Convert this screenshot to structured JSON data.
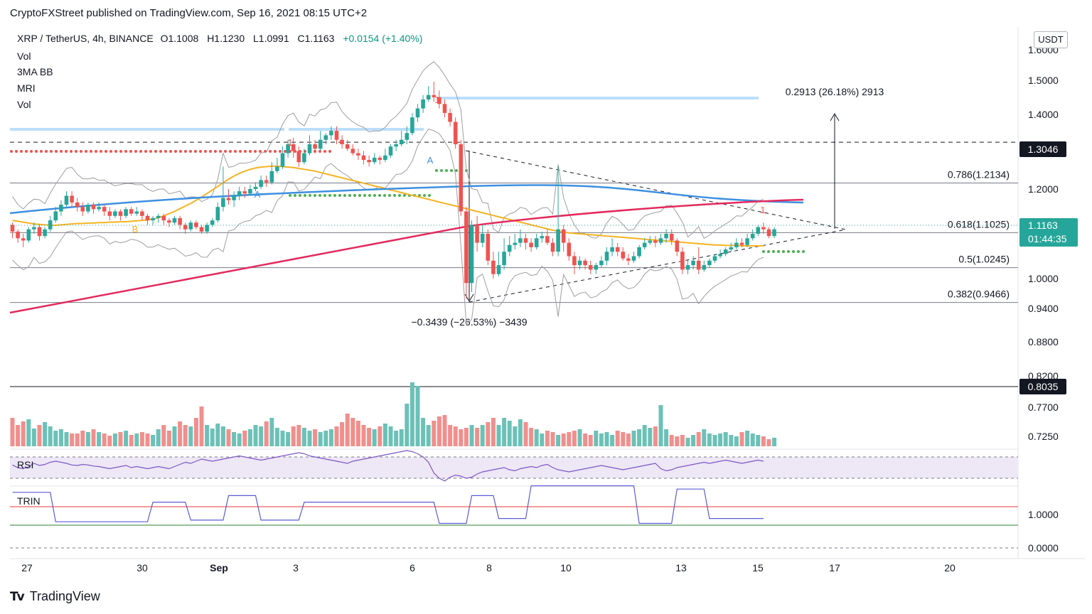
{
  "publisher": "CryptoFXStreet published on TradingView.com, Sep 16, 2021 08:15 UTC+2",
  "legend": {
    "symbol": "XRP / TetherUS, 4h, BINANCE",
    "o": "O1.1008",
    "h": "H1.1230",
    "l": "L1.0991",
    "c": "C1.1163",
    "change": "+0.0154 (+1.40%)",
    "indicators": [
      "Vol",
      "3MA BB",
      "MRI",
      "Vol"
    ]
  },
  "currency_button": "USDT",
  "footer_brand": "TradingView",
  "colors": {
    "up": "#26a69a",
    "down": "#ef5350",
    "ma_yellow": "#f5b323",
    "ma_blue": "#3d8fe0",
    "ma_red": "#e32a5d",
    "bb": "#9e9e9e",
    "trin": "#5b5bd6",
    "rsi": "#7e57c2"
  },
  "chart_data": {
    "type": "candlestick",
    "title": "XRP / TetherUS, 4h, BINANCE",
    "y_ticks": [
      "1.6000",
      "1.5000",
      "1.4000",
      "1.2000",
      "1.0000",
      "0.9400",
      "0.8800",
      "0.8200",
      "0.7700",
      "0.7250"
    ],
    "x_ticks": [
      "27",
      "30",
      "Sep",
      "3",
      "6",
      "8",
      "10",
      "13",
      "15",
      "17",
      "20"
    ],
    "levels": [
      {
        "label": "0.786(1.2134)",
        "value": 1.2134
      },
      {
        "label": "0.618(1.1025)",
        "value": 1.1025
      },
      {
        "label": "0.5(1.0245)",
        "value": 1.0245
      },
      {
        "label": "0.382(0.9466)",
        "value": 0.9466
      }
    ],
    "price_tags": {
      "top": "1.3046",
      "current": "1.1163",
      "countdown": "01:44:35",
      "bottom": "0.8035"
    },
    "measurements": {
      "up": "0.2913 (26.18%) 2913",
      "down": "−0.3439 (−26.53%) −3439"
    },
    "pane_labels": {
      "rsi": "RSI",
      "trin": "TRIN"
    },
    "trin_ticks": [
      "1.0000",
      "0.0000"
    ],
    "markers": [
      "1",
      "1",
      "1",
      "A",
      "A",
      "B"
    ],
    "candles": [
      [
        1.12,
        1.105,
        1.125,
        1.09
      ],
      [
        1.105,
        1.09,
        1.11,
        1.08
      ],
      [
        1.09,
        1.085,
        1.1,
        1.07
      ],
      [
        1.085,
        1.11,
        1.115,
        1.08
      ],
      [
        1.11,
        1.115,
        1.125,
        1.1
      ],
      [
        1.115,
        1.095,
        1.12,
        1.085
      ],
      [
        1.095,
        1.11,
        1.115,
        1.09
      ],
      [
        1.11,
        1.13,
        1.14,
        1.105
      ],
      [
        1.13,
        1.15,
        1.16,
        1.125
      ],
      [
        1.15,
        1.165,
        1.175,
        1.14
      ],
      [
        1.165,
        1.185,
        1.195,
        1.16
      ],
      [
        1.185,
        1.17,
        1.195,
        1.16
      ],
      [
        1.17,
        1.16,
        1.18,
        1.15
      ],
      [
        1.16,
        1.15,
        1.17,
        1.14
      ],
      [
        1.15,
        1.165,
        1.17,
        1.145
      ],
      [
        1.165,
        1.155,
        1.17,
        1.145
      ],
      [
        1.155,
        1.16,
        1.17,
        1.15
      ],
      [
        1.16,
        1.15,
        1.165,
        1.14
      ],
      [
        1.15,
        1.14,
        1.16,
        1.13
      ],
      [
        1.14,
        1.15,
        1.155,
        1.135
      ],
      [
        1.15,
        1.14,
        1.155,
        1.13
      ],
      [
        1.14,
        1.155,
        1.16,
        1.135
      ],
      [
        1.155,
        1.145,
        1.16,
        1.14
      ],
      [
        1.145,
        1.15,
        1.16,
        1.14
      ],
      [
        1.15,
        1.14,
        1.155,
        1.13
      ],
      [
        1.14,
        1.13,
        1.145,
        1.12
      ],
      [
        1.13,
        1.135,
        1.14,
        1.12
      ],
      [
        1.135,
        1.14,
        1.145,
        1.125
      ],
      [
        1.14,
        1.13,
        1.145,
        1.12
      ],
      [
        1.13,
        1.125,
        1.135,
        1.115
      ],
      [
        1.125,
        1.135,
        1.14,
        1.12
      ],
      [
        1.135,
        1.12,
        1.14,
        1.11
      ],
      [
        1.12,
        1.11,
        1.125,
        1.1
      ],
      [
        1.11,
        1.125,
        1.13,
        1.105
      ],
      [
        1.125,
        1.115,
        1.13,
        1.11
      ],
      [
        1.115,
        1.105,
        1.12,
        1.1
      ],
      [
        1.105,
        1.12,
        1.125,
        1.1
      ],
      [
        1.12,
        1.13,
        1.135,
        1.115
      ],
      [
        1.13,
        1.16,
        1.17,
        1.125
      ],
      [
        1.16,
        1.18,
        1.25,
        1.15
      ],
      [
        1.18,
        1.175,
        1.2,
        1.165
      ],
      [
        1.175,
        1.185,
        1.195,
        1.16
      ],
      [
        1.185,
        1.195,
        1.205,
        1.175
      ],
      [
        1.195,
        1.19,
        1.205,
        1.18
      ],
      [
        1.19,
        1.2,
        1.21,
        1.185
      ],
      [
        1.2,
        1.205,
        1.215,
        1.195
      ],
      [
        1.205,
        1.22,
        1.23,
        1.2
      ],
      [
        1.22,
        1.215,
        1.23,
        1.205
      ],
      [
        1.215,
        1.24,
        1.26,
        1.21
      ],
      [
        1.24,
        1.25,
        1.27,
        1.235
      ],
      [
        1.25,
        1.28,
        1.295,
        1.245
      ],
      [
        1.28,
        1.3,
        1.31,
        1.27
      ],
      [
        1.3,
        1.285,
        1.315,
        1.27
      ],
      [
        1.285,
        1.26,
        1.295,
        1.25
      ],
      [
        1.26,
        1.28,
        1.29,
        1.255
      ],
      [
        1.28,
        1.3,
        1.32,
        1.275
      ],
      [
        1.3,
        1.29,
        1.31,
        1.28
      ],
      [
        1.29,
        1.31,
        1.33,
        1.285
      ],
      [
        1.31,
        1.32,
        1.325,
        1.3
      ],
      [
        1.32,
        1.33,
        1.34,
        1.31
      ],
      [
        1.33,
        1.31,
        1.34,
        1.3
      ],
      [
        1.31,
        1.3,
        1.32,
        1.29
      ],
      [
        1.3,
        1.29,
        1.31,
        1.285
      ],
      [
        1.29,
        1.28,
        1.3,
        1.275
      ],
      [
        1.28,
        1.275,
        1.29,
        1.265
      ],
      [
        1.275,
        1.265,
        1.285,
        1.255
      ],
      [
        1.265,
        1.26,
        1.275,
        1.25
      ],
      [
        1.26,
        1.27,
        1.28,
        1.255
      ],
      [
        1.27,
        1.265,
        1.275,
        1.255
      ],
      [
        1.265,
        1.275,
        1.29,
        1.26
      ],
      [
        1.275,
        1.295,
        1.3,
        1.27
      ],
      [
        1.295,
        1.3,
        1.31,
        1.285
      ],
      [
        1.3,
        1.31,
        1.33,
        1.295
      ],
      [
        1.31,
        1.325,
        1.34,
        1.3
      ],
      [
        1.325,
        1.36,
        1.37,
        1.32
      ],
      [
        1.36,
        1.38,
        1.39,
        1.35
      ],
      [
        1.38,
        1.4,
        1.41,
        1.37
      ],
      [
        1.4,
        1.41,
        1.43,
        1.395
      ],
      [
        1.41,
        1.405,
        1.44,
        1.395
      ],
      [
        1.405,
        1.39,
        1.42,
        1.38
      ],
      [
        1.39,
        1.37,
        1.4,
        1.36
      ],
      [
        1.37,
        1.35,
        1.38,
        1.34
      ],
      [
        1.35,
        1.3,
        1.36,
        1.29
      ],
      [
        1.3,
        1.15,
        1.31,
        1.14
      ],
      [
        1.15,
        0.99,
        1.16,
        0.955
      ],
      [
        0.99,
        1.12,
        1.13,
        0.97
      ],
      [
        1.12,
        1.08,
        1.14,
        1.06
      ],
      [
        1.08,
        1.1,
        1.12,
        1.07
      ],
      [
        1.1,
        1.04,
        1.11,
        1.03
      ],
      [
        1.04,
        1.01,
        1.06,
        1.0
      ],
      [
        1.01,
        1.03,
        1.06,
        1.005
      ],
      [
        1.03,
        1.06,
        1.09,
        1.02
      ],
      [
        1.06,
        1.075,
        1.095,
        1.05
      ],
      [
        1.075,
        1.08,
        1.1,
        1.065
      ],
      [
        1.08,
        1.09,
        1.11,
        1.07
      ],
      [
        1.09,
        1.08,
        1.1,
        1.065
      ],
      [
        1.08,
        1.07,
        1.09,
        1.06
      ],
      [
        1.07,
        1.09,
        1.1,
        1.065
      ],
      [
        1.09,
        1.095,
        1.105,
        1.08
      ],
      [
        1.095,
        1.08,
        1.11,
        1.075
      ],
      [
        1.08,
        1.06,
        1.09,
        1.05
      ],
      [
        1.06,
        1.11,
        1.25,
        1.05
      ],
      [
        1.11,
        1.08,
        1.12,
        1.06
      ],
      [
        1.08,
        1.05,
        1.09,
        1.04
      ],
      [
        1.05,
        1.03,
        1.06,
        1.01
      ],
      [
        1.03,
        1.04,
        1.05,
        1.02
      ],
      [
        1.04,
        1.03,
        1.045,
        1.02
      ],
      [
        1.03,
        1.02,
        1.04,
        1.01
      ],
      [
        1.02,
        1.03,
        1.035,
        1.01
      ],
      [
        1.03,
        1.04,
        1.05,
        1.025
      ],
      [
        1.04,
        1.06,
        1.07,
        1.03
      ],
      [
        1.06,
        1.07,
        1.09,
        1.05
      ],
      [
        1.07,
        1.06,
        1.08,
        1.05
      ],
      [
        1.06,
        1.045,
        1.07,
        1.04
      ],
      [
        1.045,
        1.04,
        1.055,
        1.03
      ],
      [
        1.04,
        1.05,
        1.06,
        1.035
      ],
      [
        1.05,
        1.07,
        1.075,
        1.045
      ],
      [
        1.07,
        1.08,
        1.09,
        1.065
      ],
      [
        1.08,
        1.085,
        1.095,
        1.075
      ],
      [
        1.085,
        1.08,
        1.095,
        1.07
      ],
      [
        1.08,
        1.09,
        1.1,
        1.075
      ],
      [
        1.09,
        1.1,
        1.11,
        1.08
      ],
      [
        1.1,
        1.085,
        1.11,
        1.075
      ],
      [
        1.085,
        1.06,
        1.09,
        1.05
      ],
      [
        1.06,
        1.02,
        1.07,
        1.01
      ],
      [
        1.02,
        1.03,
        1.04,
        1.01
      ],
      [
        1.03,
        1.04,
        1.05,
        1.02
      ],
      [
        1.04,
        1.02,
        1.07,
        1.01
      ],
      [
        1.02,
        1.03,
        1.04,
        1.015
      ],
      [
        1.03,
        1.04,
        1.045,
        1.025
      ],
      [
        1.04,
        1.05,
        1.055,
        1.035
      ],
      [
        1.05,
        1.055,
        1.065,
        1.045
      ],
      [
        1.055,
        1.065,
        1.07,
        1.05
      ],
      [
        1.065,
        1.07,
        1.08,
        1.06
      ],
      [
        1.07,
        1.08,
        1.09,
        1.065
      ],
      [
        1.08,
        1.075,
        1.09,
        1.07
      ],
      [
        1.075,
        1.09,
        1.1,
        1.07
      ],
      [
        1.09,
        1.1,
        1.11,
        1.085
      ],
      [
        1.1,
        1.115,
        1.12,
        1.095
      ],
      [
        1.115,
        1.11,
        1.125,
        1.1
      ],
      [
        1.11,
        1.095,
        1.115,
        1.09
      ],
      [
        1.095,
        1.11,
        1.115,
        1.09
      ]
    ],
    "volume": [
      40,
      30,
      35,
      38,
      25,
      30,
      34,
      28,
      22,
      24,
      20,
      18,
      18,
      22,
      20,
      24,
      20,
      18,
      15,
      18,
      20,
      22,
      16,
      18,
      20,
      18,
      16,
      24,
      30,
      22,
      28,
      35,
      30,
      28,
      40,
      56,
      30,
      25,
      32,
      28,
      24,
      20,
      18,
      22,
      24,
      30,
      28,
      35,
      40,
      26,
      22,
      20,
      28,
      30,
      26,
      22,
      24,
      20,
      22,
      24,
      28,
      34,
      46,
      40,
      36,
      30,
      26,
      24,
      28,
      32,
      28,
      22,
      24,
      60,
      90,
      85,
      40,
      30,
      36,
      42,
      44,
      30,
      28,
      24,
      26,
      30,
      26,
      30,
      34,
      40,
      30,
      40,
      36,
      28,
      38,
      34,
      26,
      24,
      18,
      22,
      20,
      16,
      18,
      20,
      22,
      24,
      18,
      16,
      22,
      18,
      20,
      16,
      22,
      20,
      18,
      22,
      24,
      30,
      26,
      28,
      58,
      24,
      16,
      14,
      16,
      12,
      16,
      20,
      24,
      18,
      16,
      18,
      20,
      16,
      14,
      20,
      22,
      18,
      16,
      14,
      10,
      12
    ],
    "ma50": [
      1.13,
      1.128,
      1.126,
      1.124,
      1.122,
      1.121,
      1.12,
      1.119,
      1.119,
      1.12,
      1.121,
      1.122,
      1.123,
      1.123,
      1.124,
      1.124,
      1.125,
      1.125,
      1.126,
      1.126,
      1.127,
      1.127,
      1.128,
      1.129,
      1.13,
      1.131,
      1.133,
      1.136,
      1.14,
      1.145,
      1.15,
      1.156,
      1.162,
      1.168,
      1.175,
      1.182,
      1.19,
      1.198,
      1.206,
      1.214,
      1.222,
      1.229,
      1.235,
      1.24,
      1.244,
      1.247,
      1.249,
      1.25,
      1.251,
      1.251,
      1.25,
      1.249,
      1.248,
      1.246,
      1.244,
      1.242,
      1.24,
      1.237,
      1.234,
      1.231,
      1.228,
      1.225,
      1.222,
      1.219,
      1.216,
      1.213,
      1.21,
      1.207,
      1.204,
      1.201,
      1.198,
      1.195,
      1.192,
      1.189,
      1.186,
      1.183,
      1.18,
      1.177,
      1.174,
      1.171,
      1.168,
      1.165,
      1.162,
      1.159,
      1.156,
      1.153,
      1.15,
      1.147,
      1.144,
      1.141,
      1.138,
      1.135,
      1.132,
      1.129,
      1.126,
      1.123,
      1.12,
      1.117,
      1.114,
      1.111,
      1.108,
      1.106,
      1.104,
      1.102,
      1.101,
      1.1,
      1.099,
      1.098,
      1.097,
      1.096,
      1.095,
      1.094,
      1.093,
      1.092,
      1.091,
      1.09,
      1.089,
      1.088,
      1.087,
      1.086,
      1.085,
      1.084,
      1.083,
      1.082,
      1.081,
      1.08,
      1.079,
      1.078,
      1.077,
      1.076,
      1.075,
      1.075,
      1.074,
      1.074,
      1.074,
      1.073,
      1.073,
      1.073,
      1.073,
      1.073
    ],
    "rsi": [
      55,
      50,
      48,
      52,
      58,
      54,
      56,
      60,
      62,
      60,
      58,
      55,
      54,
      56,
      55,
      53,
      52,
      50,
      48,
      50,
      52,
      54,
      50,
      52,
      50,
      48,
      50,
      52,
      50,
      48,
      52,
      56,
      60,
      58,
      62,
      66,
      64,
      62,
      64,
      66,
      68,
      70,
      72,
      70,
      68,
      66,
      64,
      66,
      68,
      70,
      72,
      74,
      76,
      78,
      76,
      72,
      70,
      68,
      66,
      64,
      62,
      60,
      58,
      62,
      64,
      66,
      68,
      70,
      72,
      74,
      76,
      78,
      80,
      82,
      80,
      76,
      70,
      60,
      40,
      30,
      25,
      32,
      36,
      34,
      30,
      32,
      38,
      42,
      44,
      46,
      48,
      50,
      46,
      44,
      48,
      50,
      52,
      50,
      54,
      56,
      50,
      46,
      44,
      42,
      44,
      46,
      48,
      50,
      52,
      54,
      52,
      50,
      48,
      46,
      48,
      50,
      52,
      54,
      56,
      58,
      48,
      44,
      46,
      50,
      52,
      54,
      56,
      58,
      60,
      58,
      60,
      62,
      64,
      62,
      60,
      58,
      60,
      62,
      64,
      62
    ],
    "trin": [
      1.7,
      1.7,
      1.7,
      1.7,
      1.7,
      1.7,
      1.7,
      1.7,
      0.8,
      0.8,
      0.8,
      0.8,
      0.8,
      0.8,
      0.8,
      0.8,
      0.8,
      0.8,
      0.8,
      0.8,
      0.8,
      0.8,
      0.8,
      0.8,
      0.8,
      0.8,
      1.4,
      1.4,
      1.4,
      1.4,
      1.4,
      1.4,
      1.4,
      0.85,
      0.85,
      0.85,
      0.85,
      0.85,
      0.85,
      0.85,
      1.6,
      1.6,
      1.6,
      1.6,
      1.6,
      1.6,
      0.85,
      0.85,
      0.85,
      0.85,
      0.85,
      0.85,
      0.85,
      0.85,
      1.4,
      1.4,
      1.4,
      1.4,
      1.4,
      1.4,
      1.4,
      1.4,
      1.4,
      1.4,
      1.4,
      1.4,
      1.4,
      1.4,
      1.4,
      1.4,
      1.4,
      1.4,
      1.4,
      1.4,
      1.4,
      1.4,
      1.4,
      1.4,
      1.4,
      0.75,
      0.75,
      0.75,
      0.75,
      0.75,
      0.75,
      1.6,
      1.6,
      1.6,
      1.6,
      1.6,
      0.9,
      0.9,
      0.9,
      0.9,
      0.9,
      0.9,
      1.9,
      1.9,
      1.9,
      1.9,
      1.9,
      1.9,
      1.9,
      1.9,
      1.9,
      1.9,
      1.9,
      1.9,
      1.9,
      1.9,
      1.9,
      1.9,
      1.9,
      1.9,
      1.9,
      1.9,
      0.75,
      0.75,
      0.75,
      0.75,
      0.75,
      0.75,
      0.75,
      1.8,
      1.8,
      1.8,
      1.8,
      1.8,
      1.8,
      0.9,
      0.9,
      0.9,
      0.9,
      0.9,
      0.9,
      0.9,
      0.9,
      0.9,
      0.9,
      0.9
    ]
  }
}
